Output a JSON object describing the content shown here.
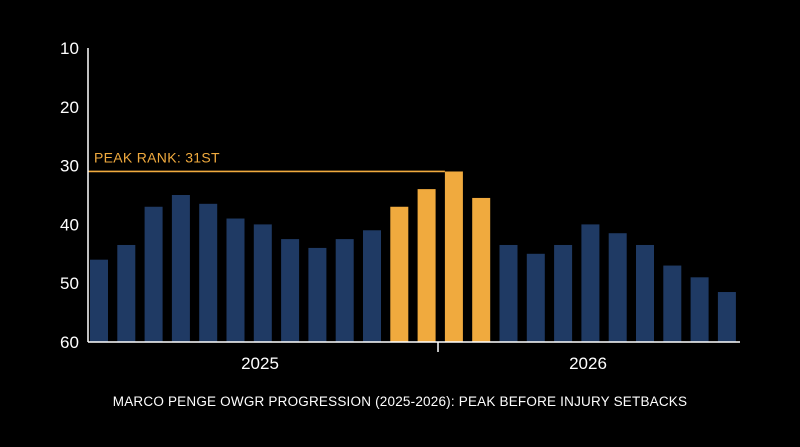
{
  "chart_data": {
    "type": "bar",
    "title": "MARCO PENGE OWGR PROGRESSION (2025-2026): PEAK BEFORE INJURY SETBACKS",
    "xlabel": "",
    "ylabel": "",
    "y_inverted": true,
    "ylim": [
      10,
      60
    ],
    "yticks": [
      10,
      20,
      30,
      40,
      50,
      60
    ],
    "year_labels": [
      "2025",
      "2026"
    ],
    "values": [
      46,
      43.5,
      37,
      35,
      36.5,
      39,
      40,
      42.5,
      44,
      42.5,
      41,
      37,
      34,
      31,
      35.5,
      43.5,
      45,
      43.5,
      40,
      41.5,
      43.5,
      47,
      49,
      51.5
    ],
    "highlight_indices": [
      11,
      12,
      13,
      14
    ],
    "colors": {
      "bar": "#1f3a64",
      "highlight": "#f0aa3e",
      "axis": "#ffffff",
      "text": "#ffffff"
    },
    "annotation": {
      "text": "PEAK RANK: 31ST",
      "value": 31
    },
    "grid": false,
    "legend": "none"
  }
}
